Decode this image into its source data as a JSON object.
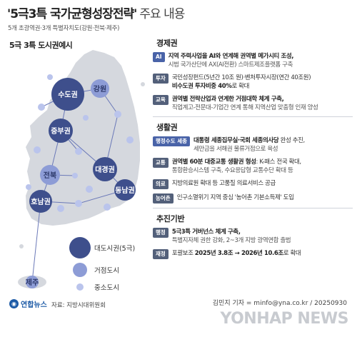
{
  "header": {
    "title_main": "'5극3특 국가균형성장전략'",
    "title_rest": "주요 내용",
    "subtitle": "5개 초광역권·3개 특별자치도(강원·전북·제주)"
  },
  "map": {
    "heading": "5극 3특 도시권예시",
    "regions": {
      "sudo": "수도권",
      "gangwon": "강원",
      "jungbu": "중부권",
      "jeonbuk": "전북",
      "daegyeong": "대경권",
      "honam": "호남권",
      "dongnam": "동남권",
      "jeju": "제주"
    },
    "legend": {
      "large": "대도시권(5극)",
      "medium": "거점도시",
      "small": "중소도시"
    },
    "colors": {
      "land": "#d5d8de",
      "large_city": "#3e4f8c",
      "medium_city": "#8d9cd6",
      "small_city": "#bac4ec"
    }
  },
  "sections": {
    "economy": {
      "title": "경제권",
      "items": [
        {
          "badge": "AI",
          "line1_bold": "지역 주력사업을 AI와 연계해 권역별 메가시티 조성,",
          "line2": "시범 국가산단에 AX(AI전환) 스마트제조플랫폼 구축"
        },
        {
          "badge": "투자",
          "line1": "국민성장펀드(5년간 10조 원)·벤처투자시장(연간 40조원)",
          "line2_bold": "비수도권 투자비중 40%",
          "line2_rest": "로 확대"
        },
        {
          "badge": "교육",
          "line1_bold": "권역별 전략산업과 연계한 거점대학 체계 구축,",
          "line2": "직업계고-전문대-기업간 연계 통해 지역산업 맞춤형 인재 양성"
        }
      ]
    },
    "life": {
      "title": "생활권",
      "items": [
        {
          "badge": "행정수도 세종",
          "line1_bold": "대통령 세종집무실·국회 세종의사당",
          "line1_rest": " 완성 추진,",
          "line2": "세만금을 서해권 물류거점으로 육성"
        },
        {
          "badge": "교통",
          "line1_bold": "권역별 60분 대중교통 생활권 형성",
          "line1_rest": ": K-패스 전국 확대,",
          "line2": "통합환승시스템 구축, 수요응답형 교통수단 확대 등"
        },
        {
          "badge": "의료",
          "line1": "지방의료원 확대 등 고품질 의료서비스 공급"
        },
        {
          "badge": "농어촌",
          "line1": "인구소멸위기 지역 중심 '농어촌 기본소득제' 도입"
        }
      ]
    },
    "drive": {
      "title": "추진기반",
      "items": [
        {
          "badge": "행정",
          "line1_bold": "5극3특 거버넌스 체계 구축,",
          "line2": "특별지자체 권한 강화, 2~3개 지방 광역연합 출범"
        },
        {
          "badge": "재정",
          "line1_pre": "포괄보조 ",
          "line1_bold": "2025년 3.8조 → 2026년 10.6조",
          "line1_rest": "로 확대"
        }
      ]
    }
  },
  "footer": {
    "logo": "연합뉴스",
    "source": "자료: 지방시대위원회",
    "byline": "김민지 기자 = minfo@yna.co.kr / 20250930",
    "watermark": "YONHAP NEWS"
  }
}
